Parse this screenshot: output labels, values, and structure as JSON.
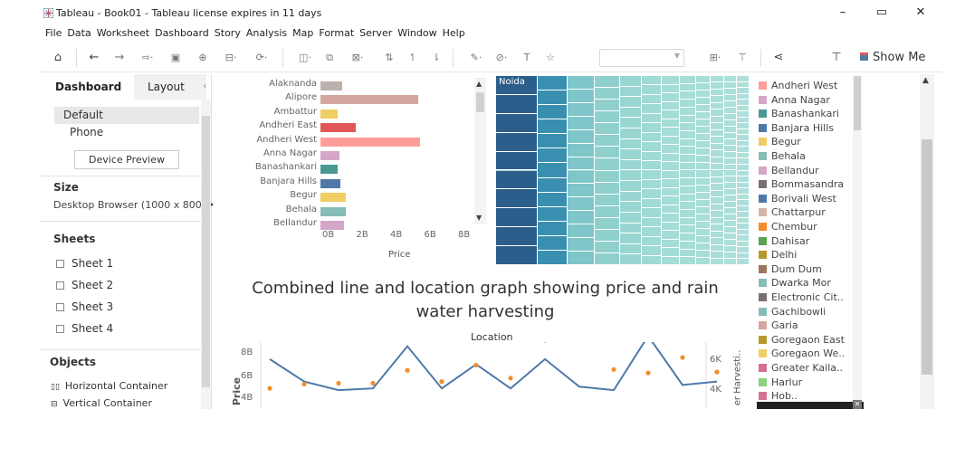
{
  "window": {
    "title": "Tableau - Book01 - Tableau license expires in 11 days",
    "minimize": "–",
    "maximize": "▭",
    "close": "✕"
  },
  "menu": [
    "File",
    "Data",
    "Worksheet",
    "Dashboard",
    "Story",
    "Analysis",
    "Map",
    "Format",
    "Server",
    "Window",
    "Help"
  ],
  "toolbar": {
    "show_me": "Show Me"
  },
  "left_panel": {
    "tabs": {
      "dashboard": "Dashboard",
      "layout": "Layout"
    },
    "devices": [
      "Default",
      "Phone"
    ],
    "device_preview": "Device Preview",
    "size_heading": "Size",
    "size_value": "Desktop Browser (1000 x 800) •",
    "sheets_heading": "Sheets",
    "sheets": [
      "Sheet 1",
      "Sheet 2",
      "Sheet 3",
      "Sheet 4"
    ],
    "objects_heading": "Objects",
    "objects": [
      "Horizontal Container",
      "Vertical Container"
    ]
  },
  "bar_chart": {
    "categories": [
      "Alaknanda",
      "Alipore",
      "Ambattur",
      "Andheri East",
      "Andheri West",
      "Anna Nagar",
      "Banashankari",
      "Banjara Hills",
      "Begur",
      "Behala",
      "Bellandur"
    ],
    "values": [
      1.3,
      5.8,
      1.0,
      2.1,
      5.9,
      1.1,
      1.0,
      1.2,
      1.5,
      1.5,
      1.4
    ],
    "colors": [
      "#bab0ac",
      "#d4a6a0",
      "#f1ce63",
      "#e15759",
      "#ff9d9a",
      "#d4a6c8",
      "#499894",
      "#4e79a7",
      "#f1ce63",
      "#86bcb6",
      "#d4a6c8"
    ],
    "x_ticks": [
      "0B",
      "2B",
      "4B",
      "6B",
      "8B"
    ],
    "x_label": "Price",
    "xlim": [
      0,
      8
    ]
  },
  "treemap": {
    "label": "Noida"
  },
  "combo_chart": {
    "title": "Combined line and location graph showing price and rain water harvesting",
    "header": "Location",
    "y_label": "Price",
    "y_ticks": [
      "8B",
      "6B",
      "4B"
    ],
    "y2_label": "er Harvesti..",
    "y2_ticks": [
      "6K",
      "4K"
    ]
  },
  "chart_data": [
    {
      "type": "bar",
      "categories": [
        "Alaknanda",
        "Alipore",
        "Ambattur",
        "Andheri East",
        "Andheri West",
        "Anna Nagar",
        "Banashankari",
        "Banjara Hills",
        "Begur",
        "Behala",
        "Bellandur"
      ],
      "values": [
        1.3,
        5.8,
        1.0,
        2.1,
        5.9,
        1.1,
        1.0,
        1.2,
        1.5,
        1.5,
        1.4
      ],
      "xlabel": "Price",
      "xlim": [
        0,
        8
      ]
    },
    {
      "type": "line",
      "title": "Combined line and location graph showing price and rain water harvesting",
      "xlabel": "Location",
      "ylabel": "Price",
      "series": [
        {
          "values": [
            5.8,
            3.2,
            2.2,
            2.4,
            7.3,
            2.4,
            5.2,
            2.4,
            5.8,
            2.6,
            2.2,
            8.5,
            2.8,
            3.2
          ]
        },
        {
          "values": [
            2.4,
            2.9,
            3.0,
            3.0,
            4.5,
            3.2,
            5.1,
            3.6,
            8.0,
            8.6,
            4.6,
            4.2,
            6.0,
            4.3
          ]
        }
      ]
    }
  ],
  "legend": {
    "items": [
      {
        "label": "Andheri West",
        "color": "#ff9d9a"
      },
      {
        "label": "Anna Nagar",
        "color": "#d4a6c8"
      },
      {
        "label": "Banashankari",
        "color": "#499894"
      },
      {
        "label": "Banjara Hills",
        "color": "#4e79a7"
      },
      {
        "label": "Begur",
        "color": "#f1ce63"
      },
      {
        "label": "Behala",
        "color": "#86bcb6"
      },
      {
        "label": "Bellandur",
        "color": "#d4a6c8"
      },
      {
        "label": "Bommasandra",
        "color": "#79706e"
      },
      {
        "label": "Borivali West",
        "color": "#4e79a7"
      },
      {
        "label": "Chattarpur",
        "color": "#d7b5a6"
      },
      {
        "label": "Chembur",
        "color": "#f28e2b"
      },
      {
        "label": "Dahisar",
        "color": "#59a14f"
      },
      {
        "label": "Delhi",
        "color": "#b6992d"
      },
      {
        "label": "Dum Dum",
        "color": "#9d7660"
      },
      {
        "label": "Dwarka Mor",
        "color": "#86bcb6"
      },
      {
        "label": "Electronic Cit..",
        "color": "#79706e"
      },
      {
        "label": "Gachibowli",
        "color": "#86bcb6"
      },
      {
        "label": "Garia",
        "color": "#d4a6a0"
      },
      {
        "label": "Goregaon East",
        "color": "#b6992d"
      },
      {
        "label": "Goregaon We..",
        "color": "#f1ce63"
      },
      {
        "label": "Greater Kaila..",
        "color": "#d37295"
      },
      {
        "label": "Harlur",
        "color": "#8cd17d"
      },
      {
        "label": "Hob..",
        "color": "#d37295"
      }
    ]
  }
}
